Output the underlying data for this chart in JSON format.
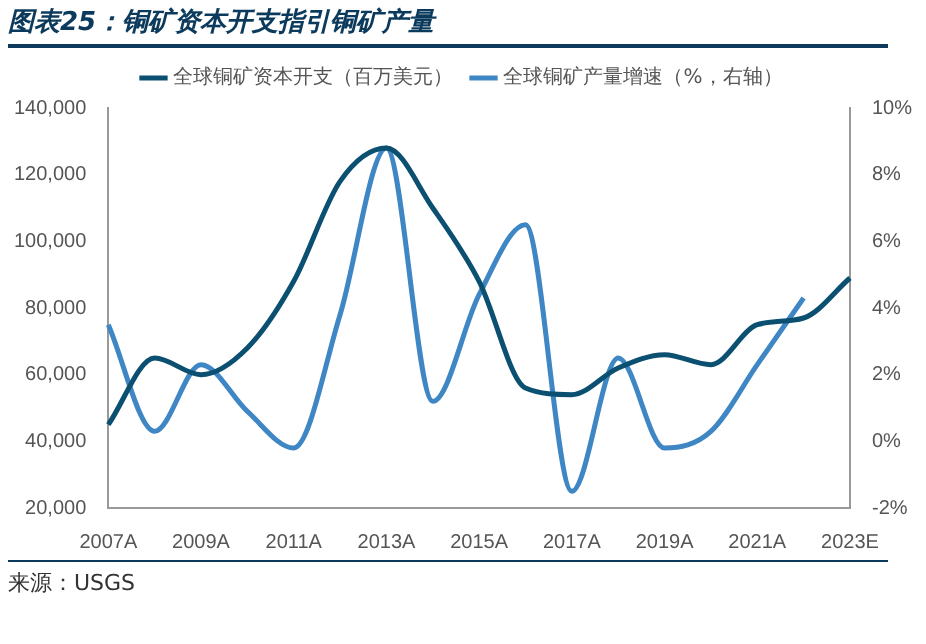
{
  "chart_data": {
    "type": "line",
    "title": "图表25：铜矿资本开支指引铜矿产量",
    "annotations": [
      "来源：USGS"
    ],
    "categories": [
      "2007A",
      null,
      "2009A",
      null,
      "2011A",
      null,
      "2013A",
      null,
      "2015A",
      null,
      "2017A",
      null,
      "2019A",
      null,
      "2021A",
      null,
      "2023E"
    ],
    "series": [
      {
        "name": "全球铜矿资本开支（百万美元）",
        "color": "#0b4f71",
        "values": [
          45000,
          65000,
          60000,
          68000,
          88000,
          118000,
          128000,
          110000,
          88000,
          56000,
          54000,
          62000,
          66000,
          63000,
          75000,
          77000,
          89000
        ]
      },
      {
        "name": "全球铜矿产量增速（%，右轴）",
        "color": "#3f86c4",
        "axis": "y2",
        "values": [
          3.5,
          0.3,
          2.3,
          0.9,
          -0.2,
          3.8,
          8.8,
          1.2,
          4.4,
          6.5,
          -1.5,
          2.5,
          -0.2,
          0.3,
          2.3,
          4.3,
          null
        ]
      }
    ],
    "ylim": [
      20000,
      140000
    ],
    "yticks": [
      {
        "value": 20000,
        "label": "20,000"
      },
      {
        "value": 40000,
        "label": "40,000"
      },
      {
        "value": 60000,
        "label": "60,000"
      },
      {
        "value": 80000,
        "label": "80,000"
      },
      {
        "value": 100000,
        "label": "100,000"
      },
      {
        "value": 120000,
        "label": "120,000"
      },
      {
        "value": 140000,
        "label": "140,000"
      }
    ],
    "y2lim": [
      -2,
      10
    ],
    "y2ticks": [
      {
        "value": -2,
        "label": "-2%"
      },
      {
        "value": 0,
        "label": "0%"
      },
      {
        "value": 2,
        "label": "2%"
      },
      {
        "value": 4,
        "label": "4%"
      },
      {
        "value": 6,
        "label": "6%"
      },
      {
        "value": 8,
        "label": "8%"
      },
      {
        "value": 10,
        "label": "10%"
      }
    ],
    "grid": false,
    "legend": "top",
    "marker": "none",
    "line_style": "solid"
  }
}
